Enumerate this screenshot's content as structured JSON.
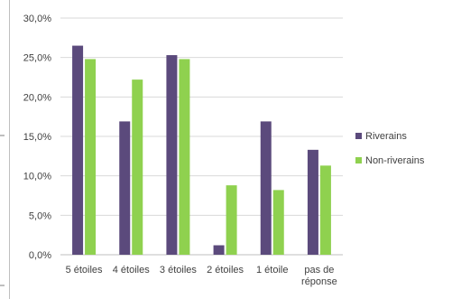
{
  "chart_data": {
    "type": "bar",
    "categories": [
      "5 étoiles",
      "4 étoiles",
      "3 étoiles",
      "2 étoiles",
      "1 étoile",
      "pas de réponse"
    ],
    "series": [
      {
        "name": "Riverains",
        "color": "#5b4a7c",
        "values": [
          26.5,
          16.9,
          25.3,
          1.2,
          16.9,
          13.3
        ]
      },
      {
        "name": "Non-riverains",
        "color": "#8fd14f",
        "values": [
          24.8,
          22.2,
          24.8,
          8.8,
          8.2,
          11.3
        ]
      }
    ],
    "ylim": [
      0,
      30
    ],
    "yticks": [
      "0,0%",
      "5,0%",
      "10,0%",
      "15,0%",
      "20,0%",
      "25,0%",
      "30,0%"
    ],
    "ytick_values": [
      0,
      5,
      10,
      15,
      20,
      25,
      30
    ],
    "grid": true,
    "legend_position": "right"
  }
}
